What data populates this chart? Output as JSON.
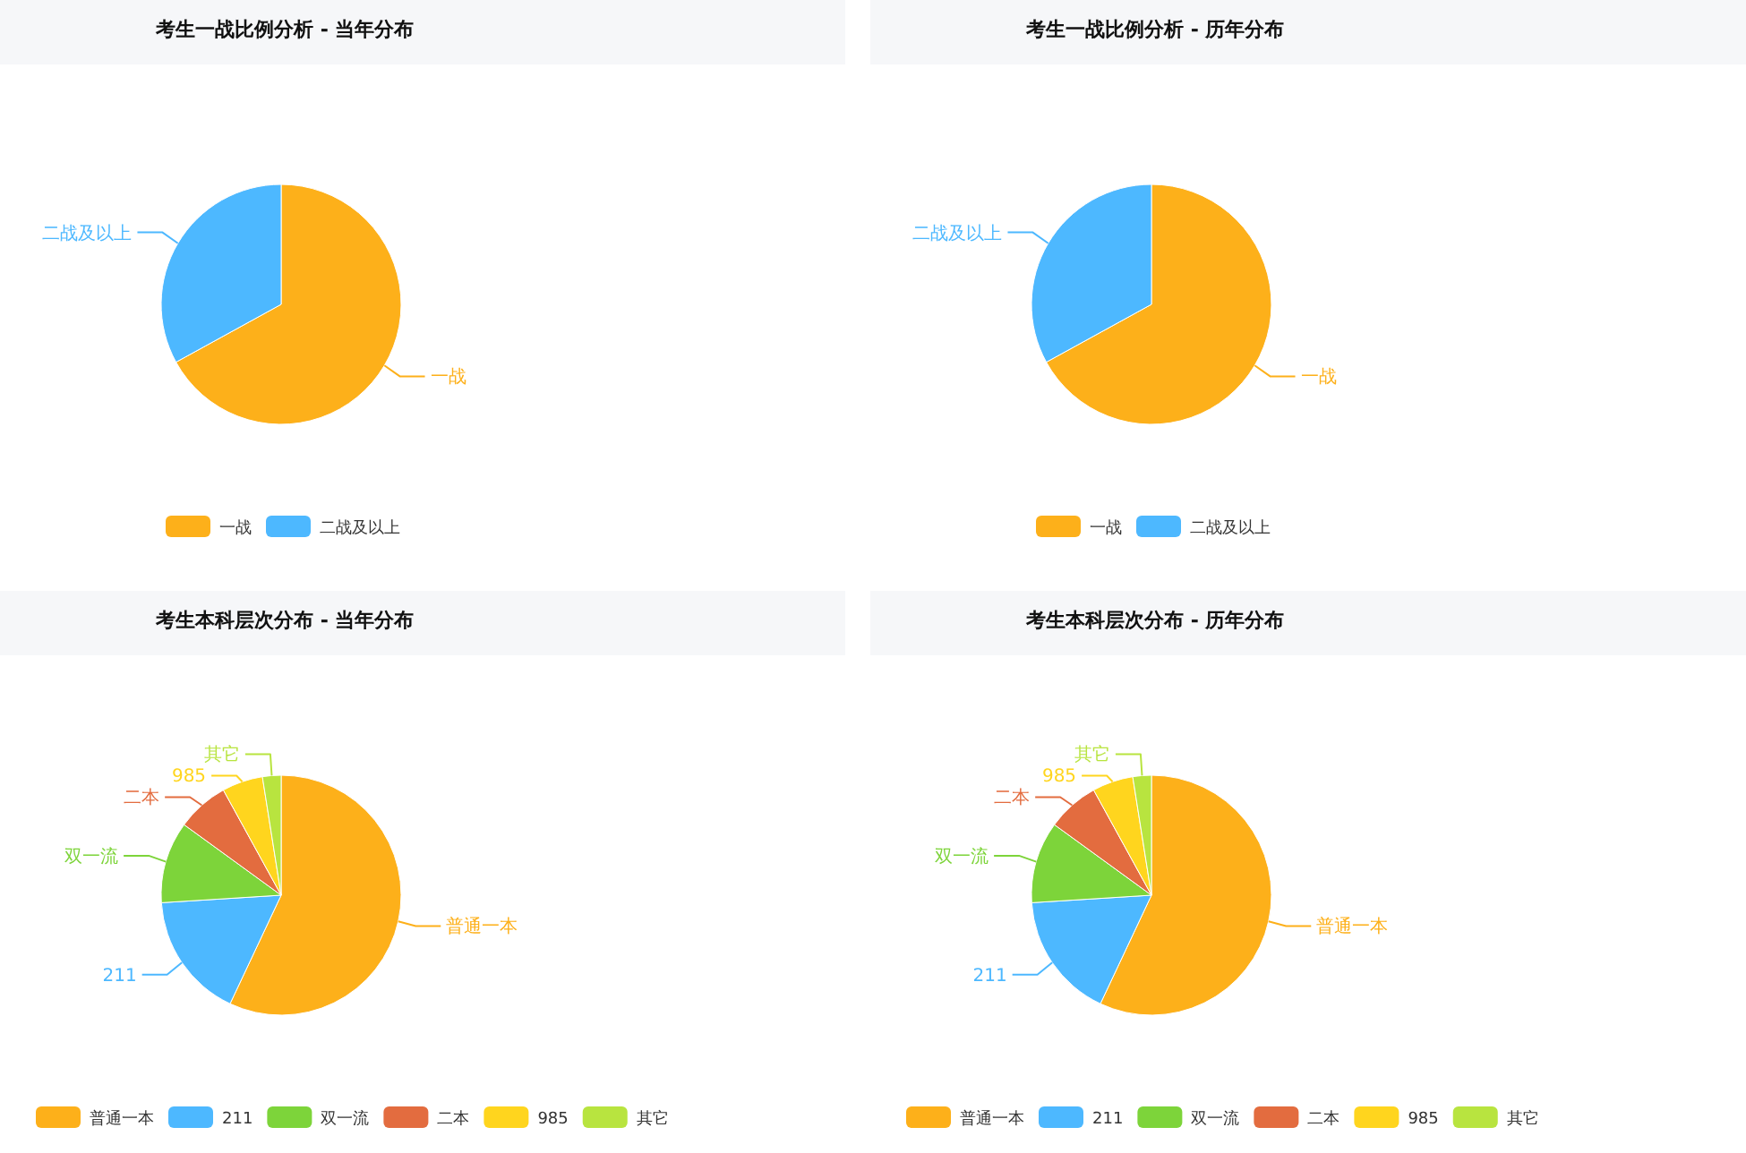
{
  "chart_data": [
    {
      "type": "pie",
      "title": "考生一战比例分析 - 当年分布",
      "categories": [
        "一战",
        "二战及以上"
      ],
      "values": [
        67,
        33
      ],
      "colors": [
        "#fdb01a",
        "#4db8ff"
      ],
      "legend": "bottom"
    },
    {
      "type": "pie",
      "title": "考生一战比例分析 - 历年分布",
      "categories": [
        "一战",
        "二战及以上"
      ],
      "values": [
        67,
        33
      ],
      "colors": [
        "#fdb01a",
        "#4db8ff"
      ],
      "legend": "bottom"
    },
    {
      "type": "pie",
      "title": "考生本科层次分布 - 当年分布",
      "categories": [
        "普通一本",
        "211",
        "双一流",
        "二本",
        "985",
        "其它"
      ],
      "values": [
        57,
        17,
        11,
        7,
        5.5,
        2.5
      ],
      "colors": [
        "#fdb01a",
        "#4db8ff",
        "#7dd43a",
        "#e36c3f",
        "#ffd51e",
        "#b8e43f"
      ],
      "legend": "bottom"
    },
    {
      "type": "pie",
      "title": "考生本科层次分布 - 历年分布",
      "categories": [
        "普通一本",
        "211",
        "双一流",
        "二本",
        "985",
        "其它"
      ],
      "values": [
        57,
        17,
        11,
        7,
        5.5,
        2.5
      ],
      "colors": [
        "#fdb01a",
        "#4db8ff",
        "#7dd43a",
        "#e36c3f",
        "#ffd51e",
        "#b8e43f"
      ],
      "legend": "bottom"
    }
  ]
}
